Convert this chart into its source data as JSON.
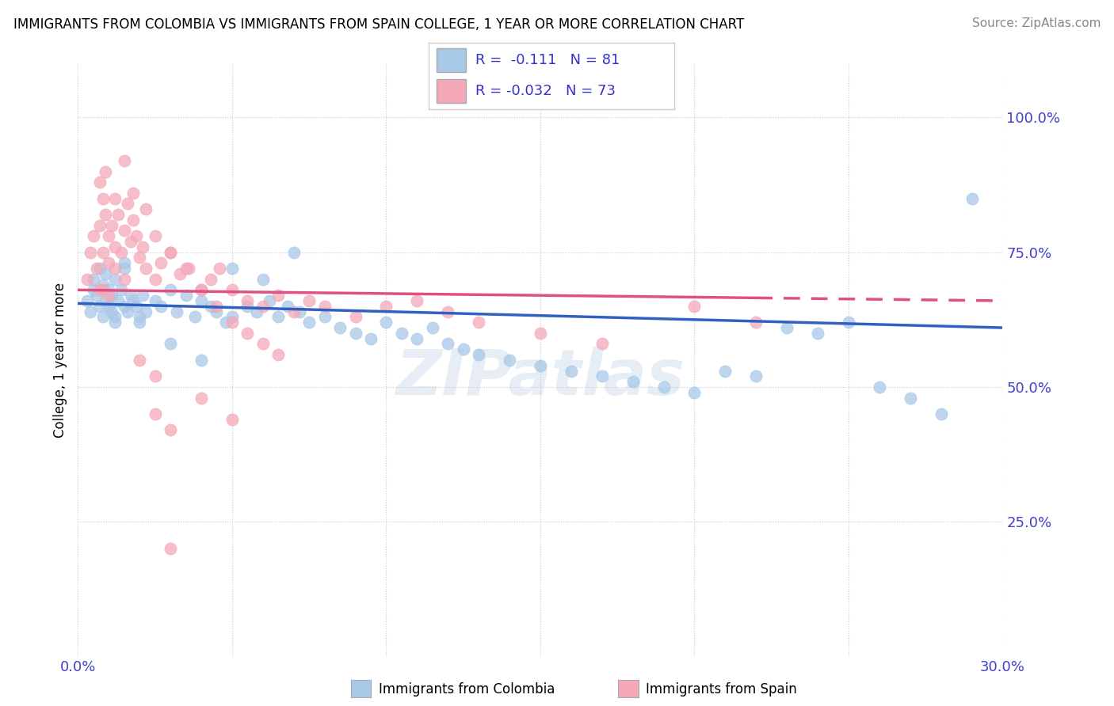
{
  "title": "IMMIGRANTS FROM COLOMBIA VS IMMIGRANTS FROM SPAIN COLLEGE, 1 YEAR OR MORE CORRELATION CHART",
  "source": "Source: ZipAtlas.com",
  "ylabel": "College, 1 year or more",
  "xlim": [
    0.0,
    0.3
  ],
  "ylim": [
    0.0,
    1.1
  ],
  "xtick_positions": [
    0.0,
    0.05,
    0.1,
    0.15,
    0.2,
    0.25,
    0.3
  ],
  "xticklabels": [
    "0.0%",
    "",
    "",
    "",
    "",
    "",
    "30.0%"
  ],
  "ytick_positions": [
    0.25,
    0.5,
    0.75,
    1.0
  ],
  "ytick_labels": [
    "25.0%",
    "50.0%",
    "75.0%",
    "100.0%"
  ],
  "legend_label1": "Immigrants from Colombia",
  "legend_label2": "Immigrants from Spain",
  "r1": -0.111,
  "n1": 81,
  "r2": -0.032,
  "n2": 73,
  "color1": "#a8c8e8",
  "color2": "#f4a8b8",
  "line_color1": "#3060c0",
  "line_color2": "#e05080",
  "background_color": "#ffffff",
  "watermark": "ZIPatlas",
  "colombia_x": [
    0.003,
    0.004,
    0.005,
    0.005,
    0.006,
    0.007,
    0.007,
    0.008,
    0.008,
    0.009,
    0.009,
    0.01,
    0.01,
    0.011,
    0.011,
    0.012,
    0.012,
    0.013,
    0.014,
    0.015,
    0.015,
    0.016,
    0.017,
    0.018,
    0.019,
    0.02,
    0.021,
    0.022,
    0.025,
    0.027,
    0.03,
    0.032,
    0.035,
    0.038,
    0.04,
    0.043,
    0.045,
    0.048,
    0.05,
    0.055,
    0.058,
    0.062,
    0.065,
    0.068,
    0.072,
    0.075,
    0.08,
    0.085,
    0.09,
    0.095,
    0.1,
    0.105,
    0.11,
    0.115,
    0.12,
    0.125,
    0.13,
    0.14,
    0.15,
    0.16,
    0.17,
    0.18,
    0.19,
    0.2,
    0.21,
    0.22,
    0.23,
    0.24,
    0.25,
    0.26,
    0.27,
    0.28,
    0.29,
    0.05,
    0.06,
    0.07,
    0.03,
    0.04,
    0.02,
    0.015,
    0.012
  ],
  "colombia_y": [
    0.66,
    0.64,
    0.68,
    0.7,
    0.67,
    0.65,
    0.72,
    0.63,
    0.69,
    0.66,
    0.71,
    0.65,
    0.68,
    0.64,
    0.67,
    0.63,
    0.7,
    0.66,
    0.68,
    0.65,
    0.72,
    0.64,
    0.67,
    0.66,
    0.65,
    0.63,
    0.67,
    0.64,
    0.66,
    0.65,
    0.68,
    0.64,
    0.67,
    0.63,
    0.66,
    0.65,
    0.64,
    0.62,
    0.63,
    0.65,
    0.64,
    0.66,
    0.63,
    0.65,
    0.64,
    0.62,
    0.63,
    0.61,
    0.6,
    0.59,
    0.62,
    0.6,
    0.59,
    0.61,
    0.58,
    0.57,
    0.56,
    0.55,
    0.54,
    0.53,
    0.52,
    0.51,
    0.5,
    0.49,
    0.53,
    0.52,
    0.61,
    0.6,
    0.62,
    0.5,
    0.48,
    0.45,
    0.85,
    0.72,
    0.7,
    0.75,
    0.58,
    0.55,
    0.62,
    0.73,
    0.62
  ],
  "spain_x": [
    0.003,
    0.004,
    0.005,
    0.006,
    0.007,
    0.007,
    0.008,
    0.008,
    0.009,
    0.01,
    0.01,
    0.011,
    0.012,
    0.013,
    0.014,
    0.015,
    0.016,
    0.017,
    0.018,
    0.019,
    0.02,
    0.021,
    0.022,
    0.025,
    0.027,
    0.03,
    0.033,
    0.036,
    0.04,
    0.043,
    0.046,
    0.05,
    0.055,
    0.06,
    0.065,
    0.07,
    0.075,
    0.08,
    0.09,
    0.1,
    0.11,
    0.12,
    0.13,
    0.15,
    0.17,
    0.2,
    0.22,
    0.007,
    0.009,
    0.012,
    0.015,
    0.018,
    0.022,
    0.025,
    0.03,
    0.035,
    0.04,
    0.045,
    0.05,
    0.055,
    0.06,
    0.065,
    0.025,
    0.03,
    0.04,
    0.05,
    0.008,
    0.01,
    0.012,
    0.015,
    0.02,
    0.025,
    0.03
  ],
  "spain_y": [
    0.7,
    0.75,
    0.78,
    0.72,
    0.8,
    0.68,
    0.85,
    0.75,
    0.82,
    0.78,
    0.73,
    0.8,
    0.76,
    0.82,
    0.75,
    0.79,
    0.84,
    0.77,
    0.81,
    0.78,
    0.74,
    0.76,
    0.72,
    0.7,
    0.73,
    0.75,
    0.71,
    0.72,
    0.68,
    0.7,
    0.72,
    0.68,
    0.66,
    0.65,
    0.67,
    0.64,
    0.66,
    0.65,
    0.63,
    0.65,
    0.66,
    0.64,
    0.62,
    0.6,
    0.58,
    0.65,
    0.62,
    0.88,
    0.9,
    0.85,
    0.92,
    0.86,
    0.83,
    0.78,
    0.75,
    0.72,
    0.68,
    0.65,
    0.62,
    0.6,
    0.58,
    0.56,
    0.45,
    0.42,
    0.48,
    0.44,
    0.68,
    0.67,
    0.72,
    0.7,
    0.55,
    0.52,
    0.2
  ]
}
